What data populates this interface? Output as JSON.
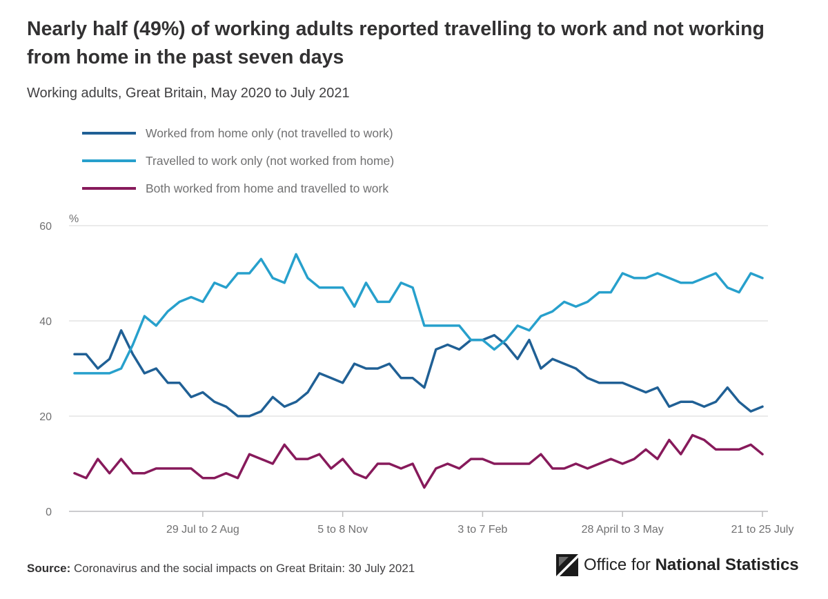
{
  "title": "Nearly half (49%) of working adults reported travelling to work and not working from home in the past seven days",
  "subtitle": "Working adults, Great Britain, May 2020 to July 2021",
  "source": {
    "label": "Source:",
    "text": "Coronavirus and the social impacts on Great Britain: 30 July 2021"
  },
  "logo": {
    "prefix": "Office for ",
    "emphasis": "National Statistics",
    "icon": "ons-logo-icon"
  },
  "chart_data": {
    "type": "line",
    "title": "Nearly half (49%) of working adults reported travelling to work and not working from home in the past seven days",
    "subtitle": "Working adults, Great Britain, May 2020 to July 2021",
    "ylabel": "%",
    "xlabel": "",
    "ylim": [
      0,
      60
    ],
    "yticks": [
      0,
      20,
      40,
      60
    ],
    "grid": true,
    "legend_position": "top-left",
    "xticks": [
      {
        "index": 11,
        "label": "29 Jul to 2 Aug"
      },
      {
        "index": 23,
        "label": "5 to 8 Nov"
      },
      {
        "index": 35,
        "label": "3 to 7 Feb"
      },
      {
        "index": 47,
        "label": "28 April to 3 May"
      },
      {
        "index": 59,
        "label": "21 to 25 July"
      }
    ],
    "series": [
      {
        "name": "Worked from home only (not travelled to work)",
        "color": "#206095",
        "values": [
          33,
          33,
          30,
          32,
          38,
          33,
          29,
          30,
          27,
          27,
          24,
          25,
          23,
          22,
          20,
          20,
          21,
          24,
          22,
          23,
          25,
          29,
          28,
          27,
          31,
          30,
          30,
          31,
          28,
          28,
          26,
          34,
          35,
          34,
          36,
          36,
          37,
          35,
          32,
          36,
          30,
          32,
          31,
          30,
          28,
          27,
          27,
          27,
          26,
          25,
          26,
          22,
          23,
          23,
          22,
          23,
          26,
          23,
          21,
          22
        ]
      },
      {
        "name": "Travelled to work only (not worked from home)",
        "color": "#27a0cc",
        "values": [
          29,
          29,
          29,
          29,
          30,
          35,
          41,
          39,
          42,
          44,
          45,
          44,
          48,
          47,
          50,
          50,
          53,
          49,
          48,
          54,
          49,
          47,
          47,
          47,
          43,
          48,
          44,
          44,
          48,
          47,
          39,
          39,
          39,
          39,
          36,
          36,
          34,
          36,
          39,
          38,
          41,
          42,
          44,
          43,
          44,
          46,
          46,
          50,
          49,
          49,
          50,
          49,
          48,
          48,
          49,
          50,
          47,
          46,
          50,
          49
        ]
      },
      {
        "name": "Both worked from home and travelled to work",
        "color": "#871a5b",
        "values": [
          8,
          7,
          11,
          8,
          11,
          8,
          8,
          9,
          9,
          9,
          9,
          7,
          7,
          8,
          7,
          12,
          11,
          10,
          14,
          11,
          11,
          12,
          9,
          11,
          8,
          7,
          10,
          10,
          9,
          10,
          5,
          9,
          10,
          9,
          11,
          11,
          10,
          10,
          10,
          10,
          12,
          9,
          9,
          10,
          9,
          10,
          11,
          10,
          11,
          13,
          11,
          15,
          12,
          16,
          15,
          13,
          13,
          13,
          14,
          12
        ]
      }
    ]
  }
}
